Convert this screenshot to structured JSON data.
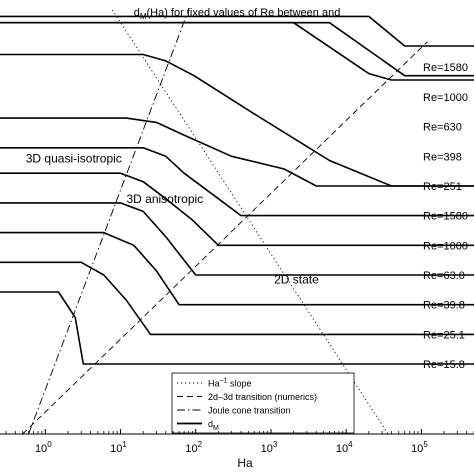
{
  "chart_data": {
    "type": "line",
    "title_main": "d",
    "title_sub": "M",
    "title_rest": "(Ha) for fixed values of Re between  and",
    "xlabel": "Ha",
    "x_scale": "log",
    "xlim": [
      0.25,
      500000
    ],
    "ylim": [
      0,
      1
    ],
    "x_ticks": [
      {
        "base": "10",
        "exp": "0",
        "value": 1
      },
      {
        "base": "10",
        "exp": "1",
        "value": 10
      },
      {
        "base": "10",
        "exp": "2",
        "value": 100
      },
      {
        "base": "10",
        "exp": "3",
        "value": 1000
      },
      {
        "base": "10",
        "exp": "4",
        "value": 10000
      },
      {
        "base": "10",
        "exp": "5",
        "value": 100000
      }
    ],
    "regions": [
      {
        "text": "3D quasi-isotropic",
        "x": 0.55,
        "y": 0.64
      },
      {
        "text": "3D anisotropic",
        "x": 12,
        "y": 0.545
      },
      {
        "text": "2D state",
        "x": 1100,
        "y": 0.355
      }
    ],
    "reference_lines": [
      {
        "name": "ha-slope",
        "style": "dotted",
        "x": [
          7.8,
          36000
        ],
        "y": [
          1.0,
          0.0
        ]
      },
      {
        "name": "transition-2d3d",
        "style": "dashed",
        "x": [
          0.5,
          120000
        ],
        "y": [
          0.0,
          0.925
        ]
      },
      {
        "name": "joule-cone",
        "style": "dashdot",
        "x": [
          0.6,
          80
        ],
        "y": [
          0.0,
          1.0
        ]
      }
    ],
    "series": [
      {
        "label": "Re=1580",
        "label_y": 0.865,
        "x": [
          0.25,
          20,
          40,
          95,
          600,
          6000,
          40000,
          500000
        ],
        "y": [
          0.895,
          0.895,
          0.88,
          0.845,
          0.755,
          0.645,
          0.585,
          0.585
        ]
      },
      {
        "label": "Re=1000",
        "label_y": 0.795,
        "x": [
          0.25,
          2000,
          20000,
          40000,
          500000
        ],
        "y": [
          0.97,
          0.97,
          0.85,
          0.835,
          0.835
        ]
      },
      {
        "label": "Re=630",
        "label_y": 0.725,
        "x": [
          0.25,
          6000,
          60000,
          500000
        ],
        "y": [
          0.97,
          0.97,
          0.845,
          0.845
        ]
      },
      {
        "label": "Re=398",
        "label_y": 0.655,
        "x": [
          0.25,
          20000,
          60000,
          500000
        ],
        "y": [
          0.985,
          0.985,
          0.915,
          0.915
        ]
      },
      {
        "label": "Re=251",
        "label_y": 0.585,
        "x": [
          0.25,
          12,
          30,
          70,
          300,
          1500,
          4000,
          500000
        ],
        "y": [
          0.745,
          0.745,
          0.735,
          0.705,
          0.655,
          0.625,
          0.585,
          0.585
        ]
      },
      {
        "label": "Re=1580",
        "label_y": 0.515,
        "x": [
          0.25,
          20,
          40,
          70,
          200,
          400,
          500000
        ],
        "y": [
          0.675,
          0.675,
          0.655,
          0.615,
          0.555,
          0.515,
          0.515
        ]
      },
      {
        "label": "Re=1000",
        "label_y": 0.445,
        "x": [
          0.25,
          10,
          20,
          40,
          90,
          200,
          500000
        ],
        "y": [
          0.615,
          0.615,
          0.595,
          0.555,
          0.505,
          0.445,
          0.445
        ]
      },
      {
        "label": "Re=63.0",
        "label_y": 0.375,
        "x": [
          0.25,
          10,
          20,
          40,
          100,
          500000
        ],
        "y": [
          0.545,
          0.545,
          0.525,
          0.465,
          0.375,
          0.375
        ]
      },
      {
        "label": "Re=39.8",
        "label_y": 0.305,
        "x": [
          0.25,
          6,
          15,
          30,
          60,
          500000
        ],
        "y": [
          0.475,
          0.475,
          0.445,
          0.385,
          0.305,
          0.305
        ]
      },
      {
        "label": "Re=25.1",
        "label_y": 0.235,
        "x": [
          0.25,
          3,
          6,
          12,
          25,
          500000
        ],
        "y": [
          0.405,
          0.405,
          0.375,
          0.315,
          0.235,
          0.235
        ]
      },
      {
        "label": "Re=15.8",
        "label_y": 0.165,
        "x": [
          0.25,
          1.5,
          2.5,
          3.2,
          500000
        ],
        "y": [
          0.335,
          0.335,
          0.275,
          0.165,
          0.165
        ]
      }
    ],
    "legend": {
      "placement": "lower-center",
      "entries": [
        {
          "style": "dotted",
          "text": "Ha",
          "sup": "−1",
          "text_after": " slope"
        },
        {
          "style": "dashed",
          "text": "2d–3d transition (numerics)",
          "sup": "",
          "text_after": ""
        },
        {
          "style": "dashdot",
          "text": "Joule cone transition",
          "sup": "",
          "text_after": ""
        },
        {
          "style": "solid",
          "text": "d",
          "sub": "M",
          "text_after": ""
        }
      ]
    }
  }
}
